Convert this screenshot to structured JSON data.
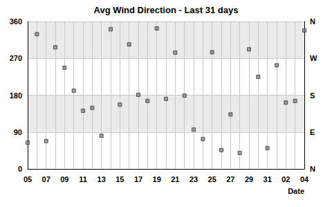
{
  "chart_data": {
    "type": "scatter",
    "title": "Avg Wind Direction - Last 31 days",
    "x_label": "Date",
    "categories": [
      "05",
      null,
      "07",
      null,
      "09",
      null,
      "11",
      null,
      "13",
      null,
      "15",
      null,
      "17",
      null,
      "19",
      null,
      "21",
      null,
      "23",
      null,
      "25",
      null,
      "27",
      null,
      "29",
      null,
      "31",
      null,
      "02",
      null,
      "04"
    ],
    "values": [
      64,
      329,
      68,
      297,
      247,
      191,
      142,
      149,
      81,
      341,
      157,
      304,
      181,
      166,
      343,
      171,
      284,
      179,
      96,
      73,
      285,
      46,
      133,
      39,
      292,
      225,
      51,
      253,
      162,
      166,
      338
    ],
    "color": "#333333",
    "marker": "square",
    "ylim": [
      0,
      360
    ],
    "yticks": [
      0,
      90,
      180,
      270,
      360
    ],
    "y2lim": [
      0,
      360
    ],
    "y2ticks": [
      {
        "value": 0,
        "label": "N"
      },
      {
        "value": 90,
        "label": "E"
      },
      {
        "value": 180,
        "label": "S"
      },
      {
        "value": 270,
        "label": "W"
      },
      {
        "value": 360,
        "label": "N"
      }
    ],
    "grid": true
  }
}
